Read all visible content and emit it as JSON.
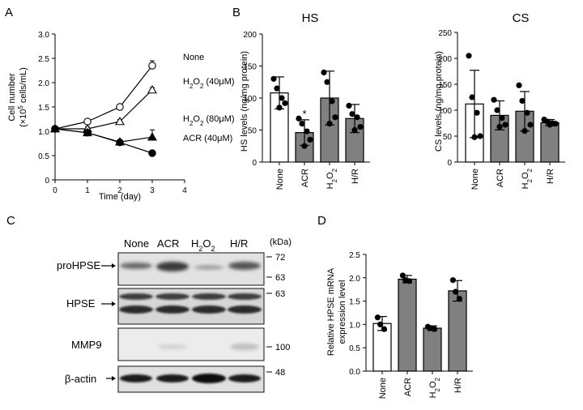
{
  "chart_data": [
    {
      "panel": "A",
      "type": "line",
      "xlabel": "Time (day)",
      "ylabel_line1": "Cell number",
      "ylabel_line2_pre": "(×10",
      "ylabel_line2_sup": "5",
      "ylabel_line2_post": " cells/mL)",
      "xlim": [
        0,
        4
      ],
      "ylim": [
        0,
        3
      ],
      "xticks": [
        "0",
        "1",
        "2",
        "3",
        "4"
      ],
      "yticks": [
        "0",
        "0.5",
        "1.0",
        "1.5",
        "2.0",
        "2.5",
        "3.0"
      ],
      "x": [
        0,
        1,
        2,
        3
      ],
      "series": [
        {
          "name": "None",
          "marker": "open-circle",
          "values": [
            1.05,
            1.2,
            1.5,
            2.35
          ],
          "err": [
            0.05,
            0.05,
            0.05,
            0.1
          ]
        },
        {
          "name_pre": "H",
          "name_sub": "2",
          "name_mid": "O",
          "name_sub2": "2",
          "name_post": " (40μM)",
          "marker": "open-triangle",
          "values": [
            1.05,
            1.05,
            1.2,
            1.85
          ],
          "err": [
            0.03,
            0.04,
            0.04,
            0.05
          ]
        },
        {
          "name_pre": "H",
          "name_sub": "2",
          "name_mid": "O",
          "name_sub2": "2",
          "name_post": " (80μM)",
          "marker": "filled-triangle",
          "values": [
            1.05,
            0.97,
            0.78,
            0.88
          ],
          "err": [
            0.03,
            0.04,
            0.04,
            0.15
          ]
        },
        {
          "name": "ACR (40μM)",
          "marker": "filled-circle",
          "values": [
            1.05,
            0.97,
            0.77,
            0.55
          ],
          "err": [
            0.03,
            0.03,
            0.03,
            0.04
          ]
        }
      ]
    },
    {
      "panel": "B",
      "type": "bar",
      "title": "HS",
      "ylabel": "HS levels (ng/mg protein)",
      "ylim": [
        0,
        200
      ],
      "yticks": [
        "0",
        "50",
        "100",
        "150",
        "200"
      ],
      "categories": [
        "None",
        "ACR",
        "H2O2",
        "H/R"
      ],
      "values": [
        108,
        46,
        100,
        68
      ],
      "err": [
        25,
        20,
        42,
        22
      ],
      "bar_colors": [
        "#ffffff",
        "#808080",
        "#808080",
        "#808080"
      ],
      "points": [
        [
          130,
          115,
          100,
          92,
          85
        ],
        [
          68,
          60,
          48,
          35,
          25
        ],
        [
          140,
          125,
          95,
          70,
          60
        ],
        [
          88,
          75,
          70,
          55,
          50
        ]
      ],
      "annotation": "*"
    },
    {
      "panel": "B2",
      "type": "bar",
      "title": "CS",
      "ylabel": "CS levels (ng/mg protein)",
      "ylim": [
        0,
        250
      ],
      "yticks": [
        "0",
        "50",
        "100",
        "150",
        "200",
        "250"
      ],
      "categories": [
        "None",
        "ACR",
        "H2O2",
        "H/R"
      ],
      "values": [
        112,
        90,
        98,
        76
      ],
      "err": [
        65,
        28,
        38,
        6
      ],
      "bar_colors": [
        "#ffffff",
        "#808080",
        "#808080",
        "#808080"
      ],
      "points": [
        [
          205,
          125,
          95,
          50,
          48
        ],
        [
          120,
          100,
          85,
          72,
          68
        ],
        [
          148,
          118,
          95,
          72,
          60
        ],
        [
          82,
          78,
          75,
          74,
          72
        ]
      ]
    },
    {
      "panel": "D",
      "type": "bar",
      "ylabel_line1": "Relative HPSE mRNA",
      "ylabel_line2": "expression level",
      "ylim": [
        0,
        2.5
      ],
      "yticks": [
        "0.0",
        "0.5",
        "1.0",
        "1.5",
        "2.0",
        "2.5"
      ],
      "categories": [
        "None",
        "ACR",
        "H2O2",
        "H/R"
      ],
      "values": [
        1.02,
        1.97,
        0.92,
        1.72
      ],
      "err": [
        0.15,
        0.08,
        0.05,
        0.22
      ],
      "bar_colors": [
        "#ffffff",
        "#808080",
        "#808080",
        "#808080"
      ],
      "points": [
        [
          1.15,
          1.0,
          0.9
        ],
        [
          2.05,
          1.95,
          1.93
        ],
        [
          0.95,
          0.92,
          0.9
        ],
        [
          1.95,
          1.7,
          1.55
        ]
      ]
    }
  ],
  "labels": {
    "a": "A",
    "b": "B",
    "c": "C",
    "d": "D"
  },
  "blot": {
    "lanes": [
      "None",
      "ACR",
      "H2O2",
      "H/R"
    ],
    "kda_label": "(kDa)",
    "rows": [
      {
        "label": "proHPSE",
        "arrow": true,
        "markers": [
          "72",
          "63"
        ]
      },
      {
        "label": "HPSE",
        "arrow": true,
        "markers": [
          "63"
        ]
      },
      {
        "label": "MMP9",
        "arrow": false,
        "markers": [
          "100"
        ]
      },
      {
        "label": "β-actin",
        "arrow": true,
        "markers": [
          "48"
        ]
      }
    ]
  }
}
